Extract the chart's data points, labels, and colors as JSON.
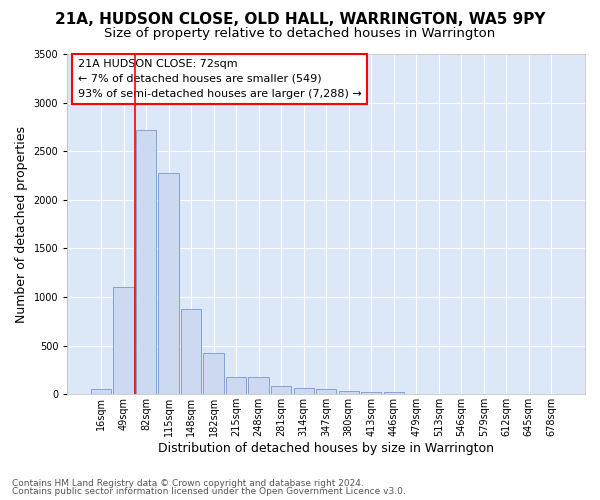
{
  "title_line1": "21A, HUDSON CLOSE, OLD HALL, WARRINGTON, WA5 9PY",
  "title_line2": "Size of property relative to detached houses in Warrington",
  "xlabel": "Distribution of detached houses by size in Warrington",
  "ylabel": "Number of detached properties",
  "footer_line1": "Contains HM Land Registry data © Crown copyright and database right 2024.",
  "footer_line2": "Contains public sector information licensed under the Open Government Licence v3.0.",
  "annotation_line1": "21A HUDSON CLOSE: 72sqm",
  "annotation_line2": "← 7% of detached houses are smaller (549)",
  "annotation_line3": "93% of semi-detached houses are larger (7,288) →",
  "bar_labels": [
    "16sqm",
    "49sqm",
    "82sqm",
    "115sqm",
    "148sqm",
    "182sqm",
    "215sqm",
    "248sqm",
    "281sqm",
    "314sqm",
    "347sqm",
    "380sqm",
    "413sqm",
    "446sqm",
    "479sqm",
    "513sqm",
    "546sqm",
    "579sqm",
    "612sqm",
    "645sqm",
    "678sqm"
  ],
  "bar_values": [
    50,
    1100,
    2720,
    2280,
    880,
    420,
    175,
    175,
    90,
    60,
    50,
    35,
    25,
    20,
    5,
    2,
    0,
    0,
    0,
    0,
    0
  ],
  "bar_color": "#ccd9f0",
  "bar_edge_color": "#7799cc",
  "red_line_x": 1.5,
  "bg_color": "#dce8f8",
  "grid_color": "#ffffff",
  "fig_bg_color": "#ffffff",
  "ylim": [
    0,
    3500
  ],
  "yticks": [
    0,
    500,
    1000,
    1500,
    2000,
    2500,
    3000,
    3500
  ],
  "title_fontsize": 11,
  "subtitle_fontsize": 9.5,
  "axis_label_fontsize": 9,
  "tick_fontsize": 7,
  "footer_fontsize": 6.5,
  "annotation_fontsize": 8
}
